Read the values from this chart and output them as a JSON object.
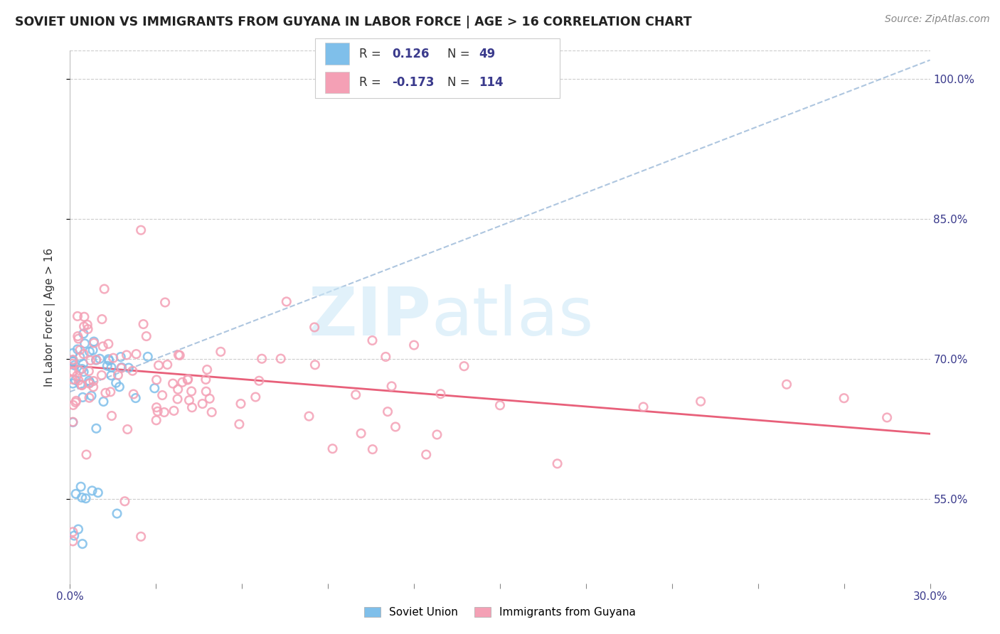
{
  "title": "SOVIET UNION VS IMMIGRANTS FROM GUYANA IN LABOR FORCE | AGE > 16 CORRELATION CHART",
  "source_text": "Source: ZipAtlas.com",
  "ylabel": "In Labor Force | Age > 16",
  "xlim": [
    0.0,
    0.3
  ],
  "ylim": [
    0.46,
    1.03
  ],
  "ytick_positions": [
    0.55,
    0.7,
    0.85,
    1.0
  ],
  "ytick_labels": [
    "55.0%",
    "70.0%",
    "85.0%",
    "100.0%"
  ],
  "r_soviet": 0.126,
  "n_soviet": 49,
  "r_guyana": -0.173,
  "n_guyana": 114,
  "color_soviet": "#7fbfea",
  "color_guyana": "#f4a0b5",
  "color_soviet_line": "#9ab8d8",
  "color_guyana_line": "#e8607a",
  "background_color": "#ffffff",
  "grid_color": "#cccccc",
  "text_color": "#3a3a8c",
  "label_color": "#333333"
}
